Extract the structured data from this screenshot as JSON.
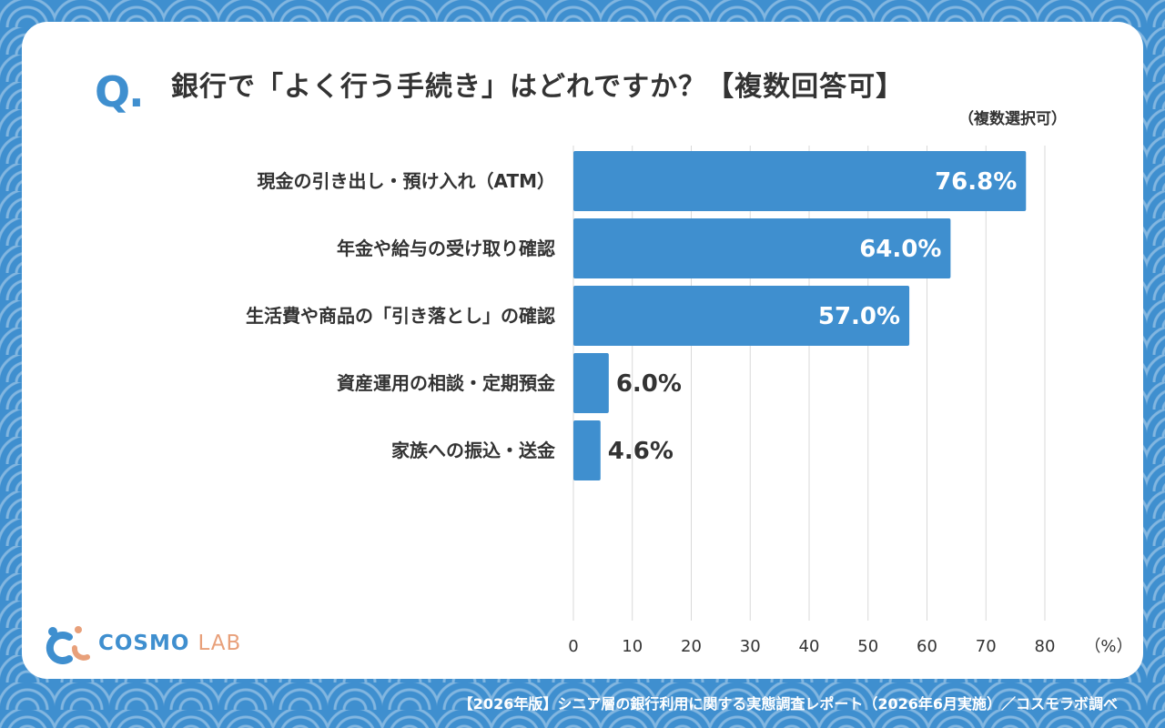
{
  "header": {
    "q_mark": "Q.",
    "question": "銀行で「よく行う手続き」はどれですか？【複数回答可】",
    "note": "（複数選択可）"
  },
  "chart_data": {
    "type": "bar",
    "orientation": "horizontal",
    "categories": [
      "現金の引き出し・預け入れ（ATM）",
      "年金や給与の受け取り確認",
      "生活費や商品の「引き落とし」の確認",
      "資産運用の相談・定期預金",
      "家族への振込・送金"
    ],
    "values": [
      76.8,
      64.0,
      57.0,
      6.0,
      4.6
    ],
    "value_labels": [
      "76.8%",
      "64.0%",
      "57.0%",
      "6.0%",
      "4.6%"
    ],
    "xlim": [
      0,
      80
    ],
    "x_ticks": [
      "0",
      "10",
      "20",
      "30",
      "40",
      "50",
      "60",
      "70",
      "80"
    ],
    "x_unit": "（%）",
    "grid": true,
    "bar_color": "#3f8fcf"
  },
  "logo": {
    "word1": "COSMO",
    "word2": "LAB",
    "icon": "cosmo-lab-logo-icon"
  },
  "footer": {
    "source": "【2026年版】シニア層の銀行利用に関する実態調査レポート（2026年6月実施）／コスモラボ調べ"
  }
}
